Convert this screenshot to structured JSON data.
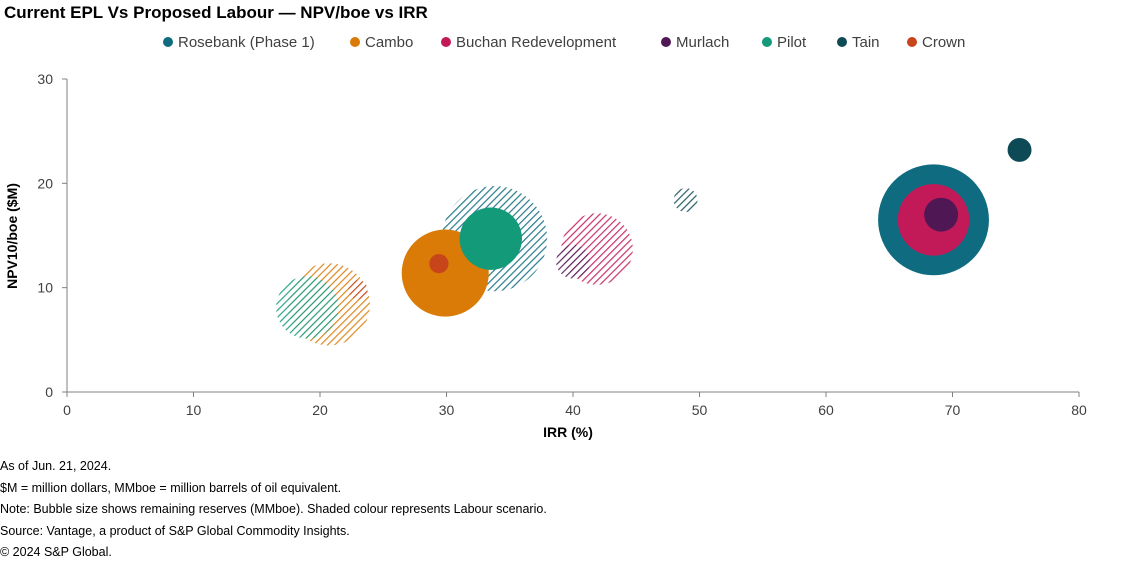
{
  "chart_data": {
    "type": "scatter",
    "title": "Current EPL Vs Proposed Labour — NPV/boe vs IRR",
    "xlabel": "IRR (%)",
    "ylabel": "NPV10/boe ($M)",
    "xlim": [
      0,
      80
    ],
    "ylim": [
      0,
      30
    ],
    "xticks": [
      "0",
      "10",
      "20",
      "30",
      "40",
      "50",
      "60",
      "70",
      "80"
    ],
    "yticks": [
      "0",
      "10",
      "20",
      "30"
    ],
    "grid": false,
    "legend_position": "top",
    "legend": [
      {
        "name": "Rosebank (Phase 1)",
        "color": "#0f6b80"
      },
      {
        "name": "Cambo",
        "color": "#d97b06"
      },
      {
        "name": "Buchan Redevelopment",
        "color": "#c21a59"
      },
      {
        "name": "Murlach",
        "color": "#4f1754"
      },
      {
        "name": "Pilot",
        "color": "#139a79"
      },
      {
        "name": "Tain",
        "color": "#0d4a56"
      },
      {
        "name": "Crown",
        "color": "#c8441a"
      }
    ],
    "series": [
      {
        "name": "Rosebank (Phase 1)",
        "color": "#0f6b80",
        "points": [
          {
            "scenario": "Current EPL",
            "x": 68.5,
            "y": 16.5,
            "size": 300
          },
          {
            "scenario": "Labour",
            "x": 33.8,
            "y": 14.7,
            "size": 270
          }
        ]
      },
      {
        "name": "Cambo",
        "color": "#d97b06",
        "points": [
          {
            "scenario": "Current EPL",
            "x": 29.9,
            "y": 11.4,
            "size": 185
          },
          {
            "scenario": "Labour",
            "x": 20.7,
            "y": 8.4,
            "size": 165
          }
        ]
      },
      {
        "name": "Buchan Redevelopment",
        "color": "#c21a59",
        "points": [
          {
            "scenario": "Current EPL",
            "x": 68.5,
            "y": 16.5,
            "size": 125
          },
          {
            "scenario": "Labour",
            "x": 41.9,
            "y": 13.7,
            "size": 125
          }
        ]
      },
      {
        "name": "Murlach",
        "color": "#4f1754",
        "points": [
          {
            "scenario": "Current EPL",
            "x": 69.1,
            "y": 17.0,
            "size": 28
          },
          {
            "scenario": "Labour",
            "x": 40.0,
            "y": 12.5,
            "size": 28
          }
        ]
      },
      {
        "name": "Pilot",
        "color": "#139a79",
        "points": [
          {
            "scenario": "Current EPL",
            "x": 33.5,
            "y": 14.7,
            "size": 95
          },
          {
            "scenario": "Labour",
            "x": 19.0,
            "y": 8.1,
            "size": 95
          }
        ]
      },
      {
        "name": "Tain",
        "color": "#0d4a56",
        "points": [
          {
            "scenario": "Current EPL",
            "x": 75.3,
            "y": 23.2,
            "size": 14
          },
          {
            "scenario": "Labour",
            "x": 48.9,
            "y": 18.4,
            "size": 14
          }
        ]
      },
      {
        "name": "Crown",
        "color": "#c8441a",
        "points": [
          {
            "scenario": "Current EPL",
            "x": 29.4,
            "y": 12.3,
            "size": 9
          },
          {
            "scenario": "Labour",
            "x": 23.0,
            "y": 9.8,
            "size": 9
          }
        ]
      }
    ]
  },
  "notes": [
    "As of Jun. 21, 2024.",
    "$M = million dollars, MMboe  = million barrels of oil equivalent.",
    "Note: Bubble size shows remaining reserves (MMboe).  Shaded colour represents Labour scenario.",
    "Source: Vantage,  a product of S&P Global Commodity Insights.",
    "© 2024 S&P Global."
  ]
}
